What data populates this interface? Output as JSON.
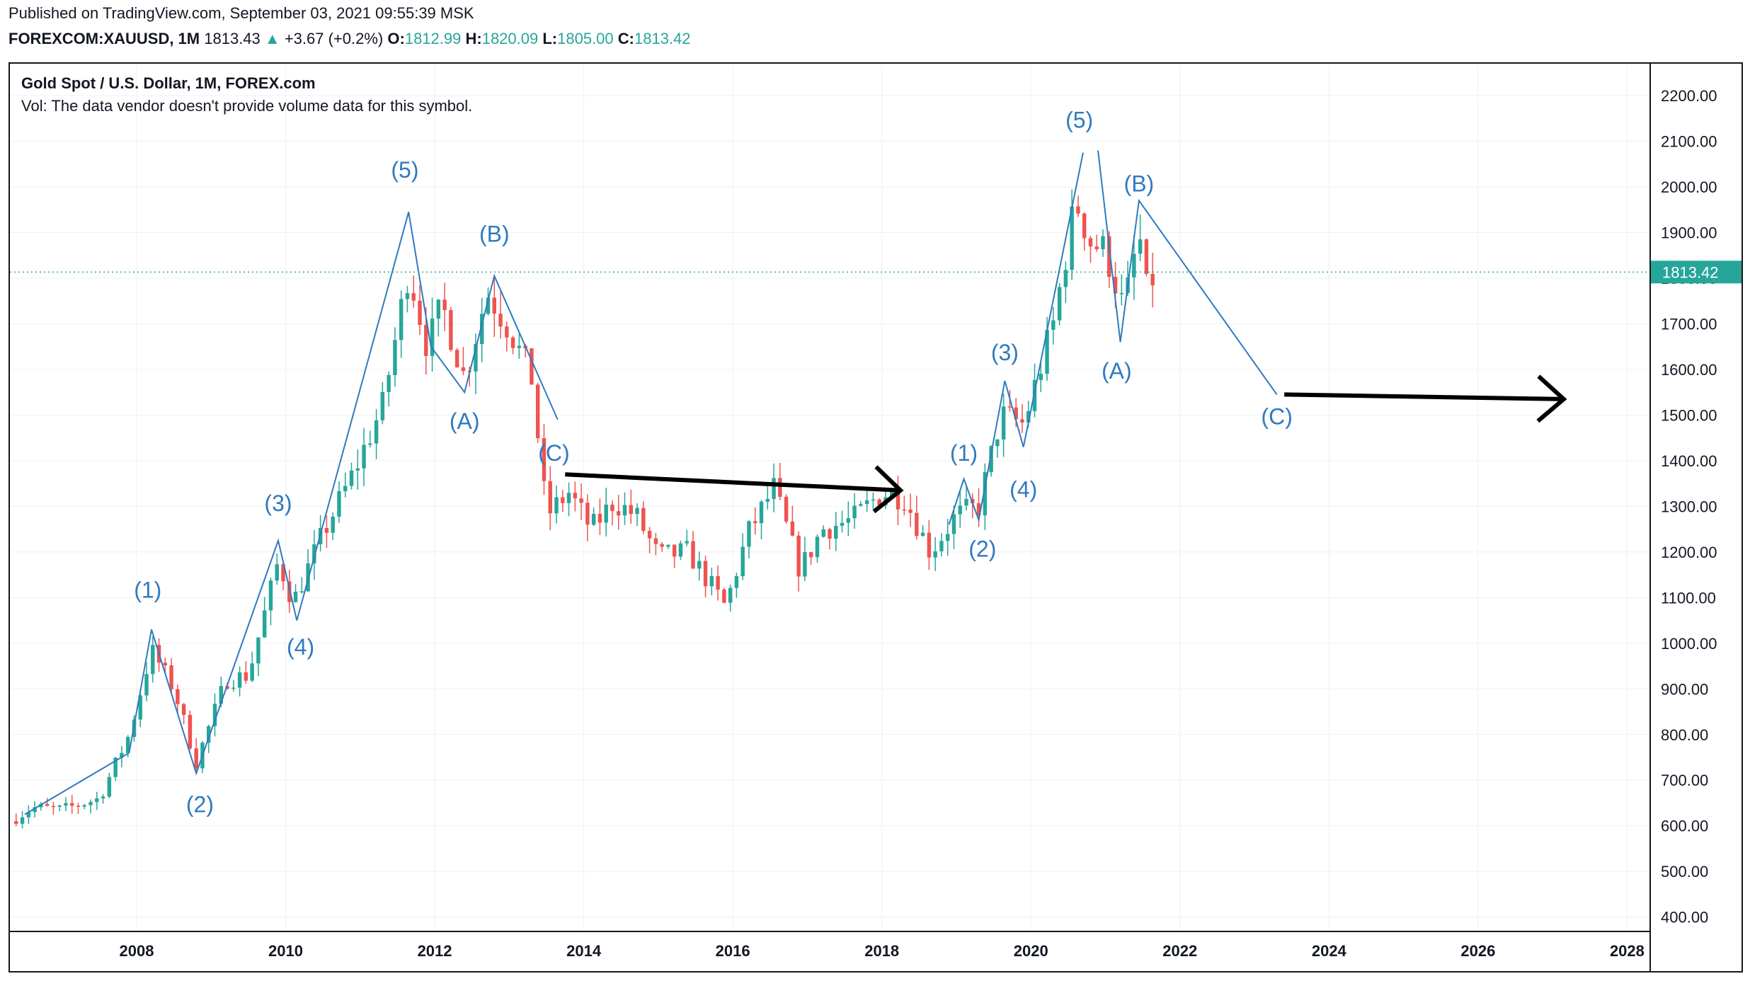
{
  "header": {
    "published": "Published on TradingView.com, September 03, 2021 09:55:39 MSK",
    "symbol": "FOREXCOM:XAUUSD, 1M",
    "last": "1813.43",
    "change_arrow": "▲",
    "change": "+3.67 (+0.2%)",
    "o_label": "O:",
    "o_value": "1812.99",
    "h_label": "H:",
    "h_value": "1820.09",
    "l_label": "L:",
    "l_value": "1805.00",
    "c_label": "C:",
    "c_value": "1813.42"
  },
  "legend": {
    "title": "Gold Spot / U.S. Dollar, 1M, FOREX.com",
    "volume_note": "Vol: The data vendor doesn't provide volume data for this symbol."
  },
  "colors": {
    "up": "#26a69a",
    "down": "#ef5350",
    "wave_line": "#2962ff",
    "wave_label": "#2f7abf",
    "arrow": "#000000",
    "grid": "#eef0f3",
    "price_line": "#26a69a"
  },
  "chart_data": {
    "type": "candlestick",
    "x_range": [
      2006.3,
      2028.3
    ],
    "y_range": [
      370,
      2270
    ],
    "price_scale": "linear",
    "xticks": [
      "2008",
      "2010",
      "2012",
      "2014",
      "2016",
      "2018",
      "2020",
      "2022",
      "2024",
      "2026",
      "2028"
    ],
    "xtick_values": [
      2008,
      2010,
      2012,
      2014,
      2016,
      2018,
      2020,
      2022,
      2024,
      2026,
      2028
    ],
    "yticks": [
      "400.00",
      "500.00",
      "600.00",
      "700.00",
      "800.00",
      "900.00",
      "1000.00",
      "1100.00",
      "1200.00",
      "1300.00",
      "1400.00",
      "1500.00",
      "1600.00",
      "1700.00",
      "1800.00",
      "1900.00",
      "2000.00",
      "2100.00",
      "2200.00"
    ],
    "ytick_values": [
      400,
      500,
      600,
      700,
      800,
      900,
      1000,
      1100,
      1200,
      1300,
      1400,
      1500,
      1600,
      1700,
      1800,
      1900,
      2000,
      2100,
      2200
    ],
    "last_price": 1813.42,
    "last_price_label": "1813.42",
    "grid": true,
    "anchors": [
      [
        2006.3,
        610
      ],
      [
        2006.6,
        640
      ],
      [
        2007.0,
        635
      ],
      [
        2007.5,
        660
      ],
      [
        2007.9,
        800
      ],
      [
        2008.2,
        985
      ],
      [
        2008.5,
        900
      ],
      [
        2008.8,
        740
      ],
      [
        2009.2,
        920
      ],
      [
        2009.5,
        930
      ],
      [
        2009.9,
        1180
      ],
      [
        2010.1,
        1090
      ],
      [
        2010.5,
        1240
      ],
      [
        2010.9,
        1370
      ],
      [
        2011.3,
        1520
      ],
      [
        2011.65,
        1820
      ],
      [
        2011.9,
        1650
      ],
      [
        2012.1,
        1740
      ],
      [
        2012.4,
        1580
      ],
      [
        2012.7,
        1770
      ],
      [
        2013.0,
        1690
      ],
      [
        2013.3,
        1580
      ],
      [
        2013.5,
        1280
      ],
      [
        2013.8,
        1330
      ],
      [
        2014.1,
        1250
      ],
      [
        2014.4,
        1310
      ],
      [
        2014.7,
        1280
      ],
      [
        2015.0,
        1190
      ],
      [
        2015.4,
        1200
      ],
      [
        2015.9,
        1080
      ],
      [
        2016.2,
        1240
      ],
      [
        2016.55,
        1340
      ],
      [
        2016.9,
        1160
      ],
      [
        2017.2,
        1250
      ],
      [
        2017.6,
        1270
      ],
      [
        2018.0,
        1330
      ],
      [
        2018.3,
        1320
      ],
      [
        2018.65,
        1200
      ],
      [
        2019.0,
        1280
      ],
      [
        2019.3,
        1300
      ],
      [
        2019.6,
        1500
      ],
      [
        2019.9,
        1480
      ],
      [
        2020.1,
        1590
      ],
      [
        2020.3,
        1700
      ],
      [
        2020.6,
        1970
      ],
      [
        2020.8,
        1880
      ],
      [
        2021.0,
        1860
      ],
      [
        2021.25,
        1730
      ],
      [
        2021.45,
        1900
      ],
      [
        2021.55,
        1770
      ],
      [
        2021.67,
        1813
      ]
    ],
    "wave_lines": [
      {
        "name": "weekly-swing",
        "points": [
          [
            2006.5,
            625
          ],
          [
            2007.9,
            760
          ],
          [
            2008.2,
            1030
          ],
          [
            2008.8,
            715
          ],
          [
            2009.9,
            1225
          ],
          [
            2010.15,
            1050
          ],
          [
            2011.65,
            1945
          ],
          [
            2011.95,
            1650
          ],
          [
            2012.4,
            1550
          ],
          [
            2012.8,
            1805
          ],
          [
            2013.65,
            1490
          ]
        ]
      },
      {
        "name": "2019-swing",
        "points": [
          [
            2018.9,
            1260
          ],
          [
            2019.1,
            1360
          ],
          [
            2019.3,
            1270
          ],
          [
            2019.65,
            1575
          ],
          [
            2019.9,
            1430
          ],
          [
            2020.7,
            2075
          ]
        ]
      },
      {
        "name": "projection",
        "points": [
          [
            2020.9,
            2080
          ],
          [
            2021.2,
            1660
          ],
          [
            2021.45,
            1970
          ],
          [
            2023.3,
            1545
          ]
        ]
      }
    ],
    "wave_labels": [
      {
        "text": "(1)",
        "x": 2008.15,
        "y": 1100
      },
      {
        "text": "(2)",
        "x": 2008.85,
        "y": 630
      },
      {
        "text": "(3)",
        "x": 2009.9,
        "y": 1290
      },
      {
        "text": "(4)",
        "x": 2010.2,
        "y": 975
      },
      {
        "text": "(5)",
        "x": 2011.6,
        "y": 2020
      },
      {
        "text": "(A)",
        "x": 2012.4,
        "y": 1470
      },
      {
        "text": "(B)",
        "x": 2012.8,
        "y": 1880
      },
      {
        "text": "(C)",
        "x": 2013.6,
        "y": 1400
      },
      {
        "text": "(1)",
        "x": 2019.1,
        "y": 1400
      },
      {
        "text": "(2)",
        "x": 2019.35,
        "y": 1190
      },
      {
        "text": "(3)",
        "x": 2019.65,
        "y": 1620
      },
      {
        "text": "(4)",
        "x": 2019.9,
        "y": 1320
      },
      {
        "text": "(5)",
        "x": 2020.65,
        "y": 2130
      },
      {
        "text": "(B)",
        "x": 2021.45,
        "y": 1990
      },
      {
        "text": "(A)",
        "x": 2021.15,
        "y": 1580
      },
      {
        "text": "(C)",
        "x": 2023.3,
        "y": 1480
      }
    ],
    "arrows": [
      {
        "name": "horizontal-arrow-2013",
        "from": [
          2013.75,
          1370
        ],
        "to": [
          2018.25,
          1335
        ]
      },
      {
        "name": "horizontal-arrow-2023",
        "from": [
          2023.4,
          1545
        ],
        "to": [
          2027.15,
          1535
        ]
      }
    ]
  }
}
